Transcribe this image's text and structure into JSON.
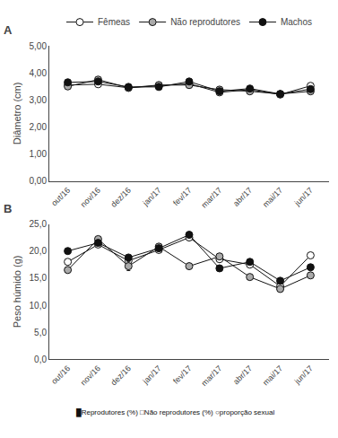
{
  "chart_data": [
    {
      "type": "line",
      "categories": [
        "out/16",
        "nov/16",
        "dez/16",
        "jan/17",
        "fev/17",
        "mar/17",
        "abr/17",
        "mai/17",
        "jun/17"
      ],
      "ylabel": "Diâmetro (cm)",
      "ylim": [
        0.0,
        5.0
      ],
      "yticks": [
        {
          "value": 0.0,
          "label": "0,00"
        },
        {
          "value": 1.0,
          "label": "1,00"
        },
        {
          "value": 2.0,
          "label": "2,00"
        },
        {
          "value": 3.0,
          "label": "3,00"
        },
        {
          "value": 4.0,
          "label": "4,00"
        },
        {
          "value": 5.0,
          "label": "5,00"
        }
      ],
      "grid": false,
      "legend": "top",
      "marker": "circle",
      "line_style": "solid",
      "color": "#111111",
      "annotations": [
        "A"
      ],
      "series": [
        {
          "name": "Fêmeas",
          "color": "#ffffff",
          "values": [
            3.55,
            3.58,
            3.45,
            3.52,
            3.6,
            3.28,
            3.38,
            3.2,
            3.52
          ],
          "errors": [
            0.04,
            0.04,
            0.03,
            0.03,
            0.04,
            0.03,
            0.03,
            0.02,
            0.04
          ]
        },
        {
          "name": "Não reprodutores",
          "color": "#aaaaaa",
          "values": [
            3.5,
            3.75,
            3.45,
            3.55,
            3.55,
            3.38,
            3.32,
            3.22,
            3.32
          ],
          "errors": [
            0.04,
            0.04,
            0.03,
            0.03,
            0.04,
            0.03,
            0.03,
            0.02,
            0.04
          ]
        },
        {
          "name": "Machos",
          "color": "#111111",
          "values": [
            3.65,
            3.68,
            3.48,
            3.48,
            3.68,
            3.32,
            3.42,
            3.22,
            3.4
          ],
          "errors": [
            0.04,
            0.04,
            0.03,
            0.03,
            0.04,
            0.03,
            0.03,
            0.02,
            0.04
          ]
        }
      ]
    },
    {
      "type": "line",
      "categories": [
        "out/16",
        "nov/16",
        "dez/16",
        "jan/17",
        "fev/17",
        "mar/17",
        "abr/17",
        "mai/17",
        "jun/17"
      ],
      "ylabel": "Peso húmido (g)",
      "ylim": [
        0.0,
        25.0
      ],
      "yticks": [
        {
          "value": 0.0,
          "label": "0,0"
        },
        {
          "value": 5.0,
          "label": "5,0"
        },
        {
          "value": 10.0,
          "label": "10,0"
        },
        {
          "value": 15.0,
          "label": "15,0"
        },
        {
          "value": 20.0,
          "label": "20,0"
        },
        {
          "value": 25.0,
          "label": "25,0"
        }
      ],
      "grid": false,
      "marker": "circle",
      "line_style": "solid",
      "color": "#111111",
      "annotations": [
        "B",
        "█Reprodutores (%) □Não reprodutores (%) ○proporção sexual"
      ],
      "series": [
        {
          "name": "Fêmeas",
          "color": "#ffffff",
          "values": [
            18.0,
            21.2,
            18.2,
            20.2,
            22.5,
            18.5,
            17.5,
            13.5,
            19.2
          ],
          "errors": [
            0.4,
            0.5,
            0.4,
            0.4,
            0.5,
            0.4,
            0.4,
            0.4,
            0.5
          ]
        },
        {
          "name": "Não reprodutores",
          "color": "#aaaaaa",
          "values": [
            16.5,
            22.2,
            17.2,
            20.8,
            17.2,
            19.0,
            15.2,
            13.0,
            15.5
          ],
          "errors": [
            0.3,
            0.4,
            0.8,
            0.4,
            0.5,
            0.4,
            0.3,
            0.3,
            0.4
          ]
        },
        {
          "name": "Machos",
          "color": "#111111",
          "values": [
            20.0,
            21.5,
            18.8,
            20.5,
            23.0,
            16.8,
            18.0,
            14.5,
            17.0
          ],
          "errors": [
            0.3,
            0.5,
            0.4,
            0.4,
            0.5,
            0.3,
            0.4,
            0.3,
            0.4
          ]
        }
      ]
    }
  ]
}
